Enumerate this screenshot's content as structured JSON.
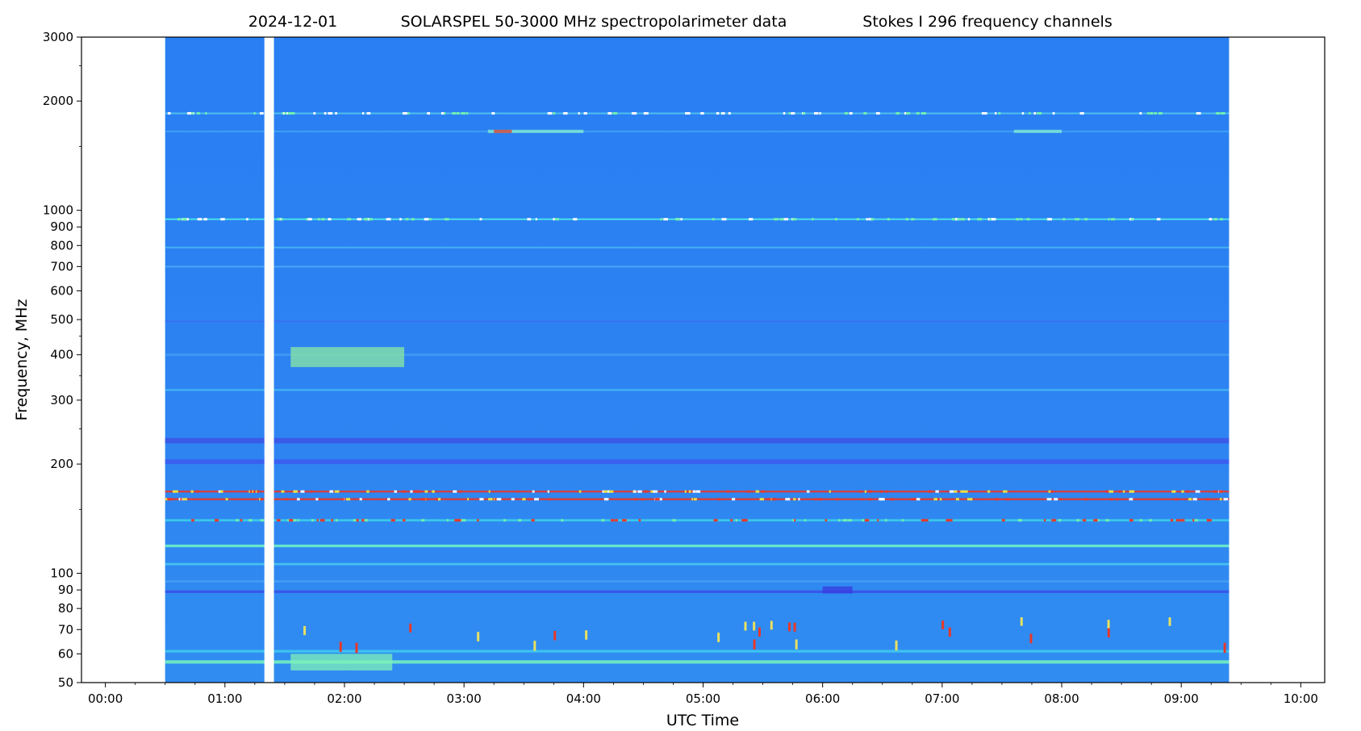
{
  "chart_data": {
    "type": "heatmap",
    "title_parts": [
      "2024-12-01",
      "SOLARSPEL   50-3000 MHz spectropolarimeter data",
      "Stokes I   296 frequency channels"
    ],
    "xlabel": "UTC Time",
    "ylabel": "Frequency, MHz",
    "x_range_hours": [
      -0.2,
      10.2
    ],
    "y_range_mhz": [
      50,
      3000
    ],
    "y_scale": "log",
    "x_tick_labels": [
      "00:00",
      "01:00",
      "02:00",
      "03:00",
      "04:00",
      "05:00",
      "06:00",
      "07:00",
      "08:00",
      "09:00",
      "10:00"
    ],
    "x_tick_hours": [
      0,
      1,
      2,
      3,
      4,
      5,
      6,
      7,
      8,
      9,
      10
    ],
    "y_tick_labels": [
      "50",
      "60",
      "70",
      "80",
      "90",
      "100",
      "200",
      "300",
      "400",
      "500",
      "600",
      "700",
      "800",
      "900",
      "1000",
      "2000",
      "3000"
    ],
    "y_tick_values": [
      50,
      60,
      70,
      80,
      90,
      100,
      200,
      300,
      400,
      500,
      600,
      700,
      800,
      900,
      1000,
      2000,
      3000
    ],
    "y_minor_ticks": [
      150,
      250,
      350,
      450,
      1500,
      2500
    ],
    "x_minor_step_hours": 0.25,
    "data_span_hours": [
      0.5,
      9.4
    ],
    "gap_hours": [
      1.33,
      1.41
    ],
    "colormap": "rainbow",
    "background_color": "#2a7ff2",
    "bands": [
      {
        "freq_mhz": 1850,
        "color": "#52c8f0",
        "width_mhz": 18
      },
      {
        "freq_mhz": 1650,
        "color": "#3fa3f5",
        "width_mhz": 15
      },
      {
        "freq_mhz": 945,
        "color": "#4ce8e8",
        "width_mhz": 10
      },
      {
        "freq_mhz": 790,
        "color": "#47b5ef",
        "width_mhz": 8
      },
      {
        "freq_mhz": 700,
        "color": "#4aa8f4",
        "width_mhz": 6
      },
      {
        "freq_mhz": 495,
        "color": "#3a6ef2",
        "width_mhz": 4
      },
      {
        "freq_mhz": 400,
        "color": "#3f9ff2",
        "width_mhz": 5
      },
      {
        "freq_mhz": 320,
        "color": "#42b4f0",
        "width_mhz": 4
      },
      {
        "freq_mhz": 232,
        "color": "#3c56e6",
        "width_mhz": 8
      },
      {
        "freq_mhz": 203,
        "color": "#3b5cf0",
        "width_mhz": 6
      },
      {
        "freq_mhz": 168,
        "color": "#e8382a",
        "width_mhz": 2
      },
      {
        "freq_mhz": 160,
        "color": "#e8382a",
        "width_mhz": 2
      },
      {
        "freq_mhz": 140,
        "color": "#3ad0e8",
        "width_mhz": 2
      },
      {
        "freq_mhz": 119,
        "color": "#6ef0c8",
        "width_mhz": 2
      },
      {
        "freq_mhz": 106,
        "color": "#48c6ef",
        "width_mhz": 1.5
      },
      {
        "freq_mhz": 95,
        "color": "#4aa0f4",
        "width_mhz": 1.2
      },
      {
        "freq_mhz": 89,
        "color": "#3a52e8",
        "width_mhz": 1.5
      },
      {
        "freq_mhz": 61,
        "color": "#40c8f0",
        "width_mhz": 1
      },
      {
        "freq_mhz": 57,
        "color": "#74f0c0",
        "width_mhz": 1.2
      }
    ],
    "features": [
      {
        "name": "burst-1650",
        "t_start": 3.2,
        "t_end": 4.0,
        "freq_mhz": 1650,
        "color": "#86f0d0"
      },
      {
        "name": "burst-1650-core",
        "t_start": 3.25,
        "t_end": 3.4,
        "freq_mhz": 1650,
        "color": "#e03a2a"
      },
      {
        "name": "burst-1650-late",
        "t_start": 7.6,
        "t_end": 8.0,
        "freq_mhz": 1650,
        "color": "#86f0d0"
      },
      {
        "name": "type3-region",
        "t_start": 1.55,
        "t_end": 2.5,
        "freq_low": 370,
        "freq_high": 420,
        "color": "#8be8a0"
      },
      {
        "name": "low-band-glow",
        "t_start": 1.55,
        "t_end": 2.4,
        "freq_low": 54,
        "freq_high": 60,
        "color": "#7ef0b8"
      },
      {
        "name": "dark-patch",
        "t_start": 6.0,
        "t_end": 6.25,
        "freq_low": 88,
        "freq_high": 92,
        "color": "#3a3ae0"
      }
    ]
  }
}
